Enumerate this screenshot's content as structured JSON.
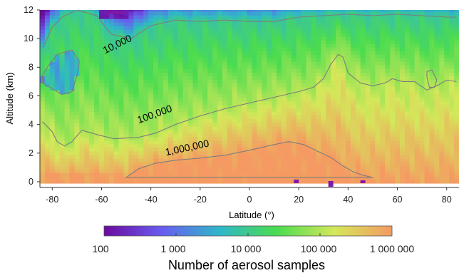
{
  "chart_data": {
    "type": "heatmap",
    "xlabel": "Latitude (°)",
    "ylabel": "Altitude (km)",
    "xlim": [
      -85,
      85
    ],
    "ylim": [
      -0.4,
      12
    ],
    "x_ticks": [
      -80,
      -60,
      -40,
      -20,
      0,
      20,
      40,
      60,
      80
    ],
    "x_tick_labels": [
      "-80",
      "-60",
      "-40",
      "-20",
      "0",
      "20",
      "40",
      "60",
      "80"
    ],
    "y_ticks": [
      0,
      2,
      4,
      6,
      8,
      10,
      12
    ],
    "y_tick_labels": [
      "0",
      "2",
      "4",
      "6",
      "8",
      "10",
      "12"
    ],
    "colorbar": {
      "title": "Number of aerosol samples",
      "scale": "log",
      "range": [
        100,
        1000000
      ],
      "ticks": [
        100,
        1000,
        10000,
        100000,
        1000000
      ],
      "tick_labels": [
        "100",
        "1 000",
        "10 000",
        "100 000",
        "1 000 000"
      ],
      "colormap": [
        "#6a0a9e",
        "#6a5cf0",
        "#2fb7c9",
        "#4bdc4f",
        "#d4e85a",
        "#f59a62"
      ]
    },
    "contours": [
      {
        "level": 10000,
        "label": "10,000",
        "boundary": [
          [
            -84,
            9.3
          ],
          [
            -80,
            10.8
          ],
          [
            -76,
            11.5
          ],
          [
            -70,
            12
          ],
          [
            -62,
            11.6
          ],
          [
            -56,
            10.3
          ],
          [
            -48,
            10
          ],
          [
            -40,
            10.9
          ],
          [
            -30,
            11.3
          ],
          [
            -20,
            11.2
          ],
          [
            -10,
            11.3
          ],
          [
            0,
            11.2
          ],
          [
            10,
            11.2
          ],
          [
            20,
            11.5
          ],
          [
            30,
            11.6
          ],
          [
            40,
            11.7
          ],
          [
            50,
            11.6
          ],
          [
            60,
            11.7
          ],
          [
            70,
            11.6
          ],
          [
            80,
            11.5
          ],
          [
            84,
            11.5
          ]
        ],
        "island": [
          [
            -84,
            6.9
          ],
          [
            -80,
            6.5
          ],
          [
            -76,
            6.1
          ],
          [
            -72,
            6.3
          ],
          [
            -70,
            7.4
          ],
          [
            -69,
            8.4
          ],
          [
            -72,
            9.2
          ],
          [
            -78,
            8.9
          ],
          [
            -82,
            8.0
          ],
          [
            -84,
            7.4
          ]
        ]
      },
      {
        "level": 100000,
        "label": "100,000",
        "boundary": [
          [
            -84,
            4.2
          ],
          [
            -80,
            3.5
          ],
          [
            -78,
            2.8
          ],
          [
            -75,
            2.5
          ],
          [
            -72,
            2.8
          ],
          [
            -70,
            3.2
          ],
          [
            -68,
            3.6
          ],
          [
            -62,
            3.3
          ],
          [
            -55,
            3.0
          ],
          [
            -45,
            3.1
          ],
          [
            -38,
            3.4
          ],
          [
            -30,
            4.0
          ],
          [
            -20,
            4.6
          ],
          [
            -10,
            5.1
          ],
          [
            0,
            5.5
          ],
          [
            10,
            5.9
          ],
          [
            20,
            6.3
          ],
          [
            26,
            6.6
          ],
          [
            30,
            7.2
          ],
          [
            33,
            8.2
          ],
          [
            36,
            8.9
          ],
          [
            38,
            8.7
          ],
          [
            40,
            7.6
          ],
          [
            45,
            6.9
          ],
          [
            50,
            6.7
          ],
          [
            55,
            6.9
          ],
          [
            58,
            7.2
          ],
          [
            62,
            7.0
          ],
          [
            67,
            7.0
          ],
          [
            72,
            6.4
          ],
          [
            76,
            6.7
          ],
          [
            80,
            7.1
          ],
          [
            84,
            7.0
          ]
        ],
        "island": [
          [
            72,
            7.3
          ],
          [
            73,
            6.6
          ],
          [
            75,
            6.6
          ],
          [
            76,
            7.1
          ],
          [
            74,
            7.8
          ],
          [
            72,
            7.7
          ]
        ]
      },
      {
        "level": 1000000,
        "label": "1,000,000",
        "boundary": [
          [
            -50,
            0.3
          ],
          [
            -45,
            0.9
          ],
          [
            -38,
            1.3
          ],
          [
            -30,
            1.5
          ],
          [
            -20,
            1.65
          ],
          [
            -10,
            1.85
          ],
          [
            0,
            2.2
          ],
          [
            10,
            2.6
          ],
          [
            16,
            2.8
          ],
          [
            22,
            2.6
          ],
          [
            28,
            2.1
          ],
          [
            33,
            1.7
          ],
          [
            38,
            1.1
          ],
          [
            42,
            0.7
          ],
          [
            46,
            0.45
          ],
          [
            50,
            0.3
          ]
        ]
      }
    ]
  }
}
